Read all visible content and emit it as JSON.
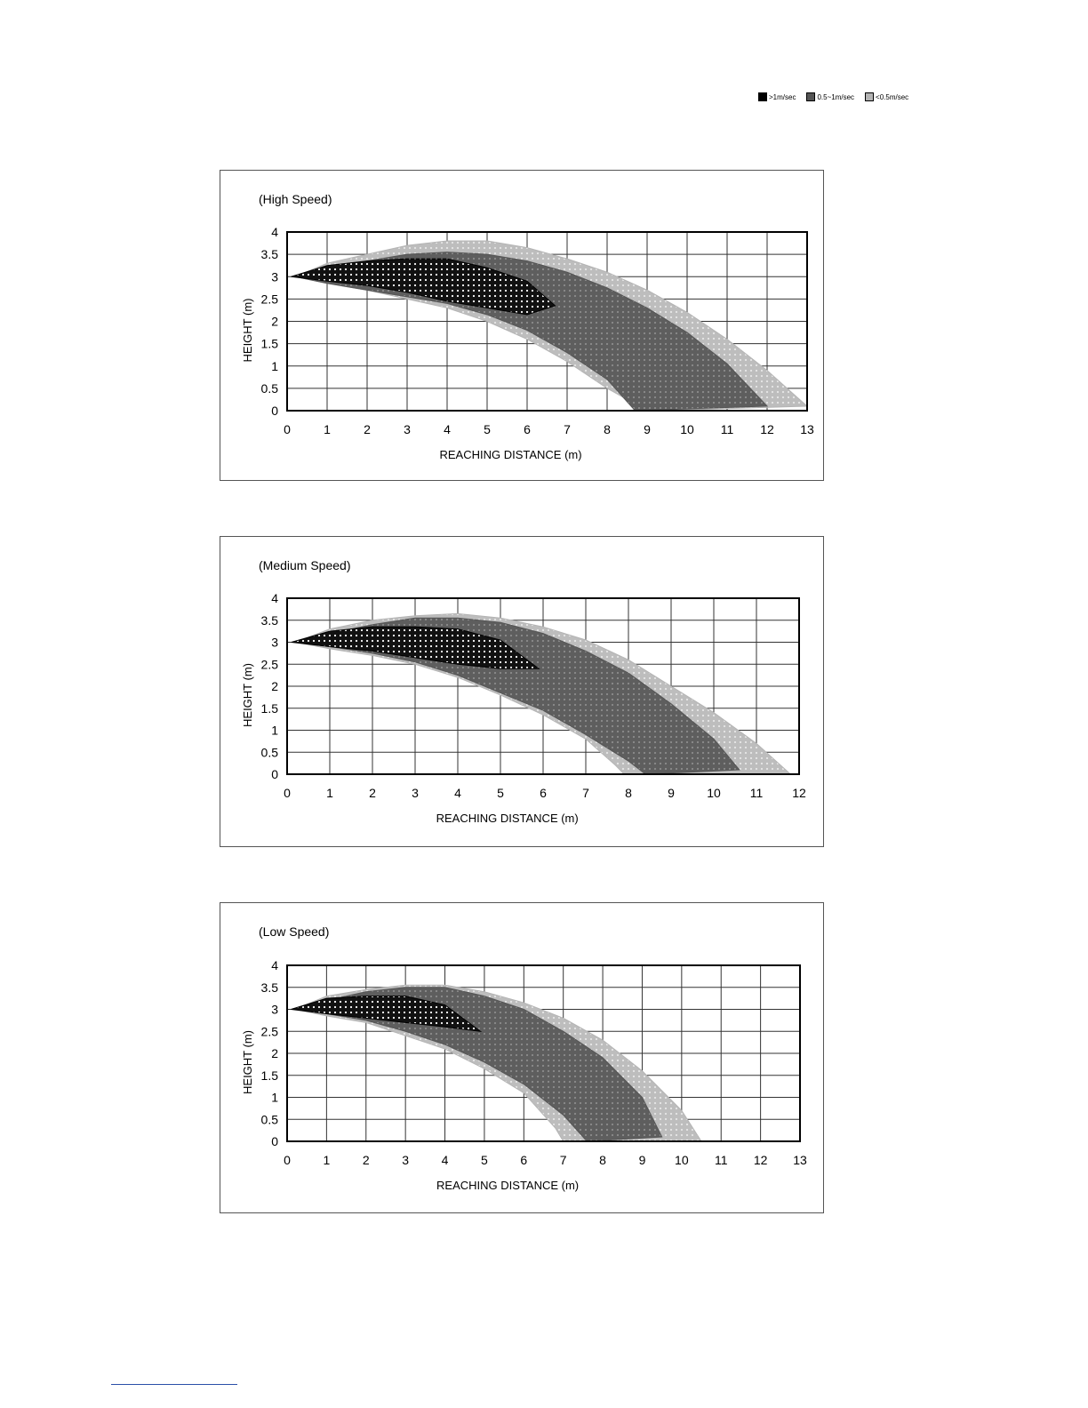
{
  "legend": [
    {
      "label": ">1m/sec",
      "color": "#000000"
    },
    {
      "label": "0.5~1m/sec",
      "color": "#555555"
    },
    {
      "label": "<0.5m/sec",
      "color": "#b4b4b4"
    }
  ],
  "chart_data": [
    {
      "type": "area",
      "title": "(High Speed)",
      "xlabel": "REACHING DISTANCE (m)",
      "ylabel": "HEIGHT (m)",
      "xlim": [
        0,
        13
      ],
      "ylim": [
        0,
        4
      ],
      "xticks": [
        "0",
        "1",
        "2",
        "3",
        "4",
        "5",
        "6",
        "7",
        "8",
        "9",
        "10",
        "11",
        "12",
        "13"
      ],
      "yticks": [
        "0",
        "0.5",
        "1",
        "1.5",
        "2",
        "2.5",
        "3",
        "3.5",
        "4"
      ],
      "grid": true,
      "series": [
        {
          "name": "<0.5m/sec",
          "color": "#b4b4b4",
          "upper": [
            [
              0.2,
              3.0
            ],
            [
              1,
              3.3
            ],
            [
              2,
              3.5
            ],
            [
              3,
              3.7
            ],
            [
              4,
              3.8
            ],
            [
              5,
              3.8
            ],
            [
              6,
              3.65
            ],
            [
              7,
              3.4
            ],
            [
              8,
              3.1
            ],
            [
              9,
              2.7
            ],
            [
              10,
              2.2
            ],
            [
              11,
              1.6
            ],
            [
              12,
              0.9
            ],
            [
              13,
              0.1
            ]
          ],
          "lower": [
            [
              0.2,
              3.0
            ],
            [
              1,
              2.85
            ],
            [
              2,
              2.7
            ],
            [
              3,
              2.5
            ],
            [
              4,
              2.3
            ],
            [
              5,
              2.0
            ],
            [
              6,
              1.6
            ],
            [
              7,
              1.1
            ],
            [
              8,
              0.5
            ],
            [
              9,
              0.0
            ],
            [
              9.3,
              0.0
            ]
          ]
        },
        {
          "name": "0.5~1m/sec",
          "color": "#555555",
          "upper": [
            [
              0.2,
              3.0
            ],
            [
              1,
              3.2
            ],
            [
              2,
              3.35
            ],
            [
              3,
              3.5
            ],
            [
              4,
              3.55
            ],
            [
              5,
              3.5
            ],
            [
              6,
              3.35
            ],
            [
              7,
              3.1
            ],
            [
              8,
              2.75
            ],
            [
              9,
              2.3
            ],
            [
              10,
              1.75
            ],
            [
              11,
              1.05
            ],
            [
              12,
              0.1
            ]
          ],
          "lower": [
            [
              0.2,
              3.0
            ],
            [
              1,
              2.85
            ],
            [
              2,
              2.7
            ],
            [
              3,
              2.55
            ],
            [
              4,
              2.4
            ],
            [
              5,
              2.15
            ],
            [
              6,
              1.8
            ],
            [
              7,
              1.3
            ],
            [
              8,
              0.7
            ],
            [
              8.7,
              0.0
            ]
          ]
        },
        {
          "name": ">1m/sec",
          "color": "#000000",
          "upper": [
            [
              0.1,
              3.0
            ],
            [
              1,
              3.25
            ],
            [
              2,
              3.35
            ],
            [
              3,
              3.4
            ],
            [
              4,
              3.4
            ],
            [
              5,
              3.2
            ],
            [
              6,
              2.9
            ],
            [
              6.7,
              2.35
            ]
          ],
          "lower": [
            [
              0.1,
              3.0
            ],
            [
              1,
              2.9
            ],
            [
              2,
              2.8
            ],
            [
              3,
              2.65
            ],
            [
              4,
              2.45
            ],
            [
              5,
              2.3
            ],
            [
              6,
              2.15
            ],
            [
              6.7,
              2.35
            ]
          ]
        }
      ]
    },
    {
      "type": "area",
      "title": "(Medium Speed)",
      "xlabel": "REACHING DISTANCE (m)",
      "ylabel": "HEIGHT (m)",
      "xlim": [
        0,
        12
      ],
      "ylim": [
        0,
        4
      ],
      "xticks": [
        "0",
        "1",
        "2",
        "3",
        "4",
        "5",
        "6",
        "7",
        "8",
        "9",
        "10",
        "11",
        "12"
      ],
      "yticks": [
        "0",
        "0.5",
        "1",
        "1.5",
        "2",
        "2.5",
        "3",
        "3.5",
        "4"
      ],
      "grid": true,
      "series": [
        {
          "name": "<0.5m/sec",
          "color": "#b4b4b4",
          "upper": [
            [
              0.2,
              3.0
            ],
            [
              1,
              3.3
            ],
            [
              2,
              3.5
            ],
            [
              3,
              3.6
            ],
            [
              4,
              3.65
            ],
            [
              5,
              3.55
            ],
            [
              6,
              3.35
            ],
            [
              7,
              3.05
            ],
            [
              8,
              2.6
            ],
            [
              9,
              2.0
            ],
            [
              10,
              1.4
            ],
            [
              11,
              0.7
            ],
            [
              11.8,
              0.0
            ]
          ],
          "lower": [
            [
              0.2,
              3.0
            ],
            [
              1,
              2.85
            ],
            [
              2,
              2.7
            ],
            [
              3,
              2.5
            ],
            [
              4,
              2.2
            ],
            [
              5,
              1.8
            ],
            [
              6,
              1.35
            ],
            [
              7,
              0.8
            ],
            [
              7.7,
              0.2
            ],
            [
              7.9,
              0.0
            ]
          ]
        },
        {
          "name": "0.5~1m/sec",
          "color": "#555555",
          "upper": [
            [
              0.2,
              3.0
            ],
            [
              1,
              3.2
            ],
            [
              2,
              3.4
            ],
            [
              3,
              3.55
            ],
            [
              4,
              3.55
            ],
            [
              5,
              3.45
            ],
            [
              6,
              3.2
            ],
            [
              7,
              2.8
            ],
            [
              8,
              2.3
            ],
            [
              9,
              1.6
            ],
            [
              10,
              0.8
            ],
            [
              10.6,
              0.1
            ]
          ],
          "lower": [
            [
              0.2,
              3.0
            ],
            [
              1,
              2.9
            ],
            [
              2,
              2.75
            ],
            [
              3,
              2.55
            ],
            [
              4,
              2.25
            ],
            [
              5,
              1.85
            ],
            [
              6,
              1.45
            ],
            [
              7,
              0.9
            ],
            [
              8,
              0.3
            ],
            [
              8.4,
              0.0
            ]
          ]
        },
        {
          "name": ">1m/sec",
          "color": "#000000",
          "upper": [
            [
              0.1,
              3.0
            ],
            [
              1,
              3.25
            ],
            [
              2,
              3.35
            ],
            [
              3,
              3.35
            ],
            [
              4,
              3.3
            ],
            [
              5,
              3.05
            ],
            [
              5.9,
              2.4
            ]
          ],
          "lower": [
            [
              0.1,
              3.0
            ],
            [
              1,
              2.9
            ],
            [
              2,
              2.8
            ],
            [
              3,
              2.65
            ],
            [
              4,
              2.5
            ],
            [
              5,
              2.4
            ],
            [
              5.9,
              2.4
            ]
          ]
        }
      ]
    },
    {
      "type": "area",
      "title": "(Low Speed)",
      "xlabel": "REACHING DISTANCE (m)",
      "ylabel": "HEIGHT (m)",
      "xlim": [
        0,
        13
      ],
      "ylim": [
        0,
        4
      ],
      "xticks": [
        "0",
        "1",
        "2",
        "3",
        "4",
        "5",
        "6",
        "7",
        "8",
        "9",
        "10",
        "11",
        "12",
        "13"
      ],
      "yticks": [
        "0",
        "0.5",
        "1",
        "1.5",
        "2",
        "2.5",
        "3",
        "3.5",
        "4"
      ],
      "grid": true,
      "series": [
        {
          "name": "<0.5m/sec",
          "color": "#b4b4b4",
          "upper": [
            [
              0.2,
              3.0
            ],
            [
              1,
              3.3
            ],
            [
              2,
              3.45
            ],
            [
              3,
              3.55
            ],
            [
              4,
              3.55
            ],
            [
              5,
              3.4
            ],
            [
              6,
              3.15
            ],
            [
              7,
              2.8
            ],
            [
              8,
              2.3
            ],
            [
              9,
              1.6
            ],
            [
              10,
              0.7
            ],
            [
              10.5,
              0.0
            ]
          ],
          "lower": [
            [
              0.2,
              3.0
            ],
            [
              1,
              2.85
            ],
            [
              2,
              2.7
            ],
            [
              3,
              2.4
            ],
            [
              4,
              2.1
            ],
            [
              5,
              1.65
            ],
            [
              6,
              1.1
            ],
            [
              6.8,
              0.3
            ],
            [
              7.0,
              0.0
            ]
          ]
        },
        {
          "name": "0.5~1m/sec",
          "color": "#555555",
          "upper": [
            [
              0.2,
              3.0
            ],
            [
              1,
              3.2
            ],
            [
              2,
              3.4
            ],
            [
              3,
              3.5
            ],
            [
              4,
              3.5
            ],
            [
              5,
              3.3
            ],
            [
              6,
              3.0
            ],
            [
              7,
              2.5
            ],
            [
              8,
              1.9
            ],
            [
              9,
              1.0
            ],
            [
              9.5,
              0.1
            ]
          ],
          "lower": [
            [
              0.2,
              3.0
            ],
            [
              1,
              2.9
            ],
            [
              2,
              2.75
            ],
            [
              3,
              2.5
            ],
            [
              4,
              2.2
            ],
            [
              5,
              1.8
            ],
            [
              6,
              1.3
            ],
            [
              7,
              0.6
            ],
            [
              7.6,
              0.0
            ]
          ]
        },
        {
          "name": ">1m/sec",
          "color": "#000000",
          "upper": [
            [
              0.1,
              3.0
            ],
            [
              1,
              3.25
            ],
            [
              2,
              3.3
            ],
            [
              3,
              3.3
            ],
            [
              4,
              3.1
            ],
            [
              4.9,
              2.5
            ]
          ],
          "lower": [
            [
              0.1,
              3.0
            ],
            [
              1,
              2.9
            ],
            [
              2,
              2.8
            ],
            [
              3,
              2.7
            ],
            [
              4,
              2.6
            ],
            [
              4.9,
              2.5
            ]
          ]
        }
      ]
    }
  ]
}
